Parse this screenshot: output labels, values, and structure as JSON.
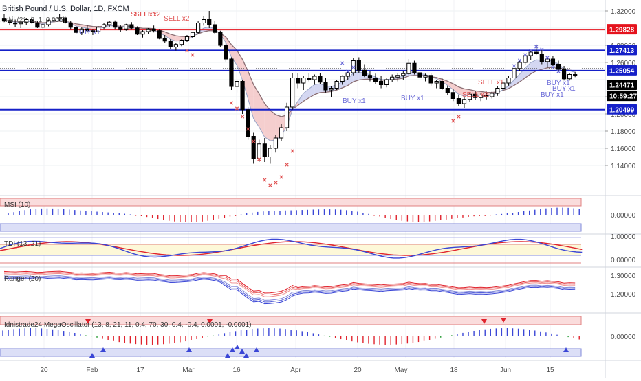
{
  "header": {
    "symbol_title": "British Pound / U.S. Dollar, 1D, FXCM",
    "ma_indicator": "...rail (21, 8, 1, 0.005)"
  },
  "price_axis": {
    "ticks": [
      "1.32000",
      "1.28000",
      "1.26000",
      "1.22000",
      "1.20000",
      "1.18000",
      "1.16000",
      "1.14000"
    ],
    "level_labels": [
      {
        "label": "1.29828",
        "color": "#e5131d"
      },
      {
        "label": "1.27413",
        "color": "#1520c8"
      },
      {
        "label": "1.25054",
        "color": "#1520c8"
      },
      {
        "label": "1.24471",
        "color": "#000000"
      },
      {
        "label": "10:59:27",
        "color": "#000000"
      },
      {
        "label": "1.20499",
        "color": "#1520c8"
      }
    ]
  },
  "time_axis": {
    "labels": [
      "20",
      "Feb",
      "17",
      "Mar",
      "16",
      "Apr",
      "20",
      "May",
      "18",
      "Jun",
      "15"
    ]
  },
  "signals": {
    "sell": [
      "SELL x1",
      "SELL x2",
      "SELL x2",
      "SELL x2",
      "SELL x1"
    ],
    "buy": [
      "BUY x1",
      "BUY x1",
      "BUY x1",
      "BUY x1",
      "BUY x1",
      "BUY x1"
    ]
  },
  "panes": [
    {
      "title": "MSI (10)",
      "ticks": [
        "0.00000"
      ]
    },
    {
      "title": "TDI (13, 21)",
      "ticks": [
        "1.00000",
        "0.00000"
      ]
    },
    {
      "title": "Ranger (20)",
      "ticks": [
        "1.30000",
        "1.20000"
      ]
    },
    {
      "title": "Idnistrade24 MegaOscillator (13, 8, 21, 11, 0.4, 70, 30, 0.4, -0.4, 0.0001, -0.0001)",
      "ticks": [
        "0.00000"
      ]
    }
  ],
  "colors": {
    "resistance_red": "#e5131d",
    "level_blue": "#1520c8",
    "candle": "#000000",
    "sell_signal": "#e05050",
    "buy_signal": "#6a6ad8",
    "bear_cloud": "#f3c2c2",
    "bull_cloud": "#c9cdef"
  },
  "chart_data": {
    "type": "candlestick",
    "symbol": "GBP/USD",
    "timeframe": "1D",
    "horizontal_levels": [
      1.29828,
      1.27413,
      1.25054,
      1.20499
    ],
    "last_price": 1.24471,
    "countdown": "10:59:27",
    "candles": [
      [
        1.3115,
        1.316,
        1.307,
        1.309
      ],
      [
        1.309,
        1.313,
        1.304,
        1.306
      ],
      [
        1.306,
        1.31,
        1.301,
        1.305
      ],
      [
        1.305,
        1.309,
        1.3,
        1.307
      ],
      [
        1.307,
        1.312,
        1.304,
        1.31
      ],
      [
        1.31,
        1.313,
        1.305,
        1.306
      ],
      [
        1.306,
        1.308,
        1.3,
        1.301
      ],
      [
        1.301,
        1.306,
        1.299,
        1.304
      ],
      [
        1.304,
        1.31,
        1.302,
        1.309
      ],
      [
        1.309,
        1.314,
        1.306,
        1.311
      ],
      [
        1.311,
        1.316,
        1.308,
        1.312
      ],
      [
        1.312,
        1.314,
        1.305,
        1.306
      ],
      [
        1.306,
        1.308,
        1.299,
        1.301
      ],
      [
        1.301,
        1.302,
        1.294,
        1.295
      ],
      [
        1.295,
        1.301,
        1.292,
        1.299
      ],
      [
        1.299,
        1.303,
        1.295,
        1.297
      ],
      [
        1.297,
        1.299,
        1.292,
        1.296
      ],
      [
        1.296,
        1.302,
        1.294,
        1.301
      ],
      [
        1.301,
        1.306,
        1.299,
        1.304
      ],
      [
        1.304,
        1.308,
        1.301,
        1.307
      ],
      [
        1.307,
        1.309,
        1.299,
        1.301
      ],
      [
        1.301,
        1.304,
        1.296,
        1.299
      ],
      [
        1.299,
        1.305,
        1.297,
        1.304
      ],
      [
        1.304,
        1.307,
        1.299,
        1.3
      ],
      [
        1.3,
        1.302,
        1.292,
        1.293
      ],
      [
        1.293,
        1.298,
        1.289,
        1.296
      ],
      [
        1.296,
        1.3,
        1.293,
        1.299
      ],
      [
        1.299,
        1.303,
        1.295,
        1.297
      ],
      [
        1.297,
        1.299,
        1.287,
        1.288
      ],
      [
        1.288,
        1.292,
        1.283,
        1.285
      ],
      [
        1.285,
        1.287,
        1.276,
        1.278
      ],
      [
        1.278,
        1.283,
        1.274,
        1.281
      ],
      [
        1.281,
        1.287,
        1.279,
        1.286
      ],
      [
        1.286,
        1.292,
        1.284,
        1.29
      ],
      [
        1.29,
        1.296,
        1.288,
        1.295
      ],
      [
        1.295,
        1.308,
        1.293,
        1.306
      ],
      [
        1.306,
        1.314,
        1.303,
        1.31
      ],
      [
        1.31,
        1.32,
        1.3,
        1.304
      ],
      [
        1.304,
        1.308,
        1.293,
        1.295
      ],
      [
        1.295,
        1.297,
        1.278,
        1.28
      ],
      [
        1.28,
        1.283,
        1.261,
        1.264
      ],
      [
        1.264,
        1.266,
        1.228,
        1.232
      ],
      [
        1.232,
        1.24,
        1.225,
        1.238
      ],
      [
        1.238,
        1.24,
        1.2,
        1.205
      ],
      [
        1.205,
        1.208,
        1.17,
        1.174
      ],
      [
        1.174,
        1.178,
        1.142,
        1.148
      ],
      [
        1.148,
        1.17,
        1.144,
        1.165
      ],
      [
        1.165,
        1.172,
        1.144,
        1.15
      ],
      [
        1.15,
        1.164,
        1.142,
        1.16
      ],
      [
        1.16,
        1.176,
        1.155,
        1.172
      ],
      [
        1.172,
        1.188,
        1.168,
        1.184
      ],
      [
        1.184,
        1.213,
        1.18,
        1.208
      ],
      [
        1.208,
        1.248,
        1.205,
        1.242
      ],
      [
        1.242,
        1.248,
        1.23,
        1.236
      ],
      [
        1.236,
        1.244,
        1.228,
        1.242
      ],
      [
        1.242,
        1.248,
        1.238,
        1.24
      ],
      [
        1.24,
        1.246,
        1.234,
        1.244
      ],
      [
        1.244,
        1.248,
        1.235,
        1.237
      ],
      [
        1.237,
        1.242,
        1.225,
        1.228
      ],
      [
        1.228,
        1.232,
        1.22,
        1.23
      ],
      [
        1.23,
        1.24,
        1.228,
        1.238
      ],
      [
        1.238,
        1.245,
        1.234,
        1.244
      ],
      [
        1.244,
        1.25,
        1.24,
        1.248
      ],
      [
        1.248,
        1.265,
        1.245,
        1.262
      ],
      [
        1.262,
        1.266,
        1.248,
        1.251
      ],
      [
        1.251,
        1.258,
        1.243,
        1.245
      ],
      [
        1.245,
        1.25,
        1.238,
        1.242
      ],
      [
        1.242,
        1.247,
        1.235,
        1.238
      ],
      [
        1.238,
        1.244,
        1.23,
        1.234
      ],
      [
        1.234,
        1.242,
        1.231,
        1.24
      ],
      [
        1.24,
        1.246,
        1.237,
        1.243
      ],
      [
        1.243,
        1.248,
        1.238,
        1.245
      ],
      [
        1.245,
        1.25,
        1.24,
        1.247
      ],
      [
        1.247,
        1.264,
        1.244,
        1.259
      ],
      [
        1.259,
        1.262,
        1.246,
        1.248
      ],
      [
        1.248,
        1.251,
        1.24,
        1.243
      ],
      [
        1.243,
        1.247,
        1.238,
        1.245
      ],
      [
        1.245,
        1.248,
        1.233,
        1.236
      ],
      [
        1.236,
        1.24,
        1.23,
        1.238
      ],
      [
        1.238,
        1.242,
        1.228,
        1.23
      ],
      [
        1.23,
        1.233,
        1.222,
        1.225
      ],
      [
        1.225,
        1.229,
        1.215,
        1.218
      ],
      [
        1.218,
        1.222,
        1.209,
        1.212
      ],
      [
        1.212,
        1.22,
        1.207,
        1.217
      ],
      [
        1.217,
        1.225,
        1.214,
        1.223
      ],
      [
        1.223,
        1.227,
        1.216,
        1.219
      ],
      [
        1.219,
        1.224,
        1.215,
        1.222
      ],
      [
        1.222,
        1.226,
        1.217,
        1.22
      ],
      [
        1.22,
        1.226,
        1.218,
        1.224
      ],
      [
        1.224,
        1.232,
        1.221,
        1.23
      ],
      [
        1.23,
        1.238,
        1.227,
        1.236
      ],
      [
        1.236,
        1.244,
        1.233,
        1.242
      ],
      [
        1.242,
        1.256,
        1.239,
        1.253
      ],
      [
        1.253,
        1.262,
        1.25,
        1.26
      ],
      [
        1.26,
        1.27,
        1.257,
        1.268
      ],
      [
        1.268,
        1.274,
        1.263,
        1.272
      ],
      [
        1.272,
        1.281,
        1.269,
        1.27
      ],
      [
        1.27,
        1.276,
        1.258,
        1.261
      ],
      [
        1.261,
        1.266,
        1.254,
        1.264
      ],
      [
        1.264,
        1.268,
        1.256,
        1.258
      ],
      [
        1.258,
        1.262,
        1.25,
        1.252
      ],
      [
        1.252,
        1.256,
        1.239,
        1.241
      ],
      [
        1.241,
        1.248,
        1.239,
        1.246
      ],
      [
        1.246,
        1.249,
        1.243,
        1.2447
      ]
    ]
  }
}
